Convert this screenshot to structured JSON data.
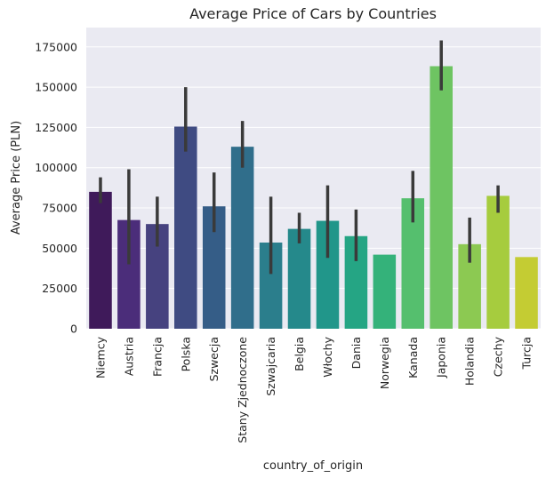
{
  "chart_data": {
    "type": "bar",
    "title": "Average Price of Cars by Countries",
    "xlabel": "country_of_origin",
    "ylabel": "Average Price (PLN)",
    "ylim": [
      0,
      187000
    ],
    "yticks": [
      0,
      25000,
      50000,
      75000,
      100000,
      125000,
      150000,
      175000
    ],
    "ytick_labels": [
      "0",
      "25000",
      "50000",
      "75000",
      "100000",
      "125000",
      "150000",
      "175000"
    ],
    "grid": true,
    "categories": [
      "Niemcy",
      "Austria",
      "Francja",
      "Polska",
      "Szwecja",
      "Stany Zjednoczone",
      "Szwajcaria",
      "Belgia",
      "Włochy",
      "Dania",
      "Norwegia",
      "Kanada",
      "Japonia",
      "Holandia",
      "Czechy",
      "Turcja"
    ],
    "values": [
      85000,
      67500,
      65000,
      125500,
      76000,
      113000,
      53500,
      62000,
      67000,
      57500,
      46000,
      81000,
      163000,
      52500,
      82500,
      44500
    ],
    "error_low": [
      78000,
      40000,
      51000,
      110000,
      60000,
      100000,
      34000,
      53000,
      44000,
      42000,
      null,
      66000,
      148000,
      41000,
      72000,
      null
    ],
    "error_high": [
      94000,
      99000,
      82000,
      150000,
      97000,
      129000,
      82000,
      72000,
      89000,
      74000,
      null,
      98000,
      179000,
      69000,
      89000,
      null
    ],
    "colors": [
      "#3f1a5a",
      "#4b2d7a",
      "#46427f",
      "#3f4b82",
      "#355d87",
      "#306e8b",
      "#2b7e8c",
      "#25898b",
      "#21968a",
      "#25a584",
      "#34b27a",
      "#55bf6e",
      "#6ec462",
      "#8cc952",
      "#a6cc3e",
      "#c4cc33"
    ],
    "background": "#eaeaf2",
    "error_color": "#3a3a3a"
  }
}
